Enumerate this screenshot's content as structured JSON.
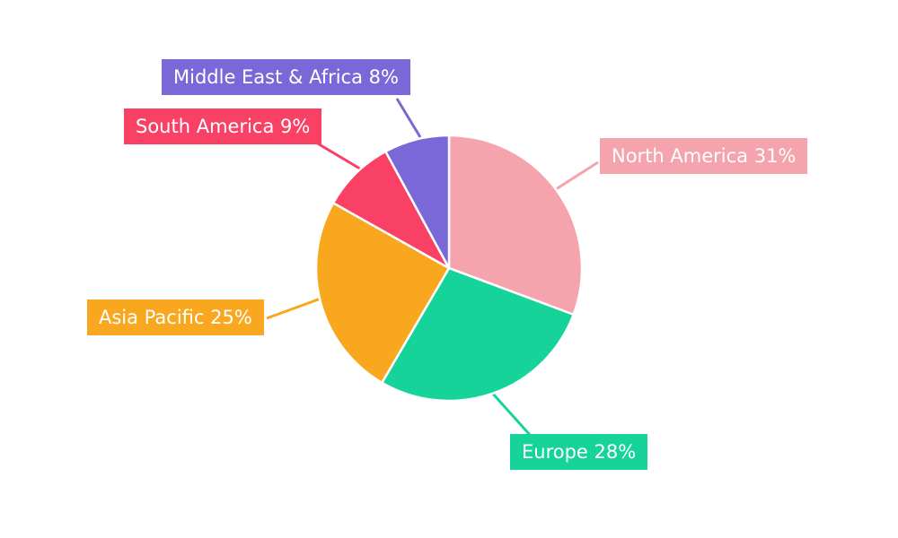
{
  "chart_data": {
    "type": "pie",
    "title": "",
    "background": "#FFFFFF",
    "start_angle_deg": 0,
    "direction": "clockwise",
    "legend_position": "none",
    "labels_style": "colored-boxes-with-leader-lines",
    "label_text_color": "#FFFFFF",
    "slices": [
      {
        "name": "North America",
        "value": 31,
        "label": "North America 31%",
        "color": "#F5A3AC"
      },
      {
        "name": "Europe",
        "value": 28,
        "label": "Europe 28%",
        "color": "#16D39A"
      },
      {
        "name": "Asia Pacific",
        "value": 25,
        "label": "Asia Pacific 25%",
        "color": "#F9A71F"
      },
      {
        "name": "South America",
        "value": 9,
        "label": "South America 9%",
        "color": "#F94166"
      },
      {
        "name": "Middle East & Africa",
        "value": 8,
        "label": "Middle East & Africa 8%",
        "color": "#7B68D8"
      }
    ]
  }
}
